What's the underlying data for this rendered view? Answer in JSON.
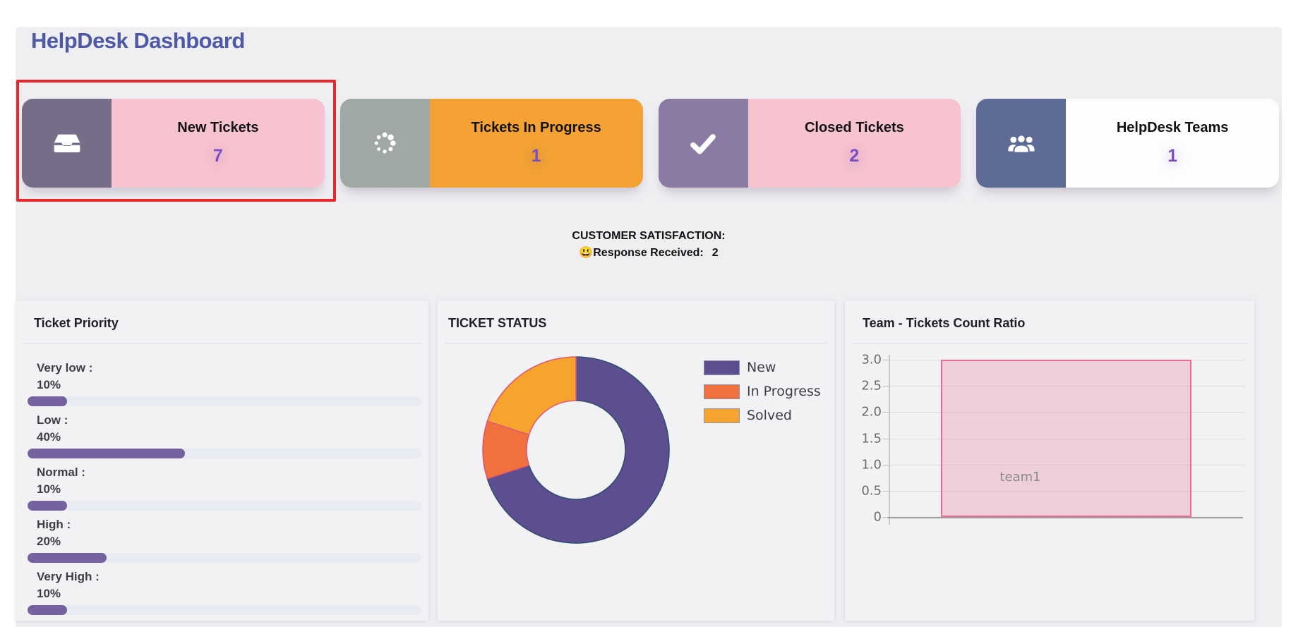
{
  "app": {
    "title": "HelpDesk Dashboard"
  },
  "kpi_cards": [
    {
      "label": "New Tickets",
      "value": "7",
      "icon": "inbox-icon",
      "icon_bg": "#766e88",
      "body_bg": "#f7c3d0",
      "highlighted": true
    },
    {
      "label": "Tickets In Progress",
      "value": "1",
      "icon": "spinner-icon",
      "icon_bg": "#9fa8a3",
      "body_bg": "#f4a233",
      "highlighted": false
    },
    {
      "label": "Closed Tickets",
      "value": "2",
      "icon": "check-icon",
      "icon_bg": "#8a7aa4",
      "body_bg": "#f7c3d0",
      "highlighted": false
    },
    {
      "label": "HelpDesk Teams",
      "value": "1",
      "icon": "users-icon",
      "icon_bg": "#5e6b97",
      "body_bg": "#fdfdfe",
      "highlighted": false
    }
  ],
  "satisfaction": {
    "heading": "CUSTOMER SATISFACTION:",
    "emoji": "😃",
    "label": "Response Received:",
    "value": "2"
  },
  "priority_panel": {
    "title": "Ticket Priority",
    "items": [
      {
        "label": "Very low :",
        "value": "10%",
        "percent": 10
      },
      {
        "label": "Low :",
        "value": "40%",
        "percent": 40
      },
      {
        "label": "Normal :",
        "value": "10%",
        "percent": 10
      },
      {
        "label": "High :",
        "value": "20%",
        "percent": 20
      },
      {
        "label": "Very High :",
        "value": "10%",
        "percent": 10
      }
    ]
  },
  "status_panel": {
    "title": "TICKET STATUS",
    "segments": [
      {
        "label": "New",
        "value": 7,
        "color": "#5d4e90",
        "border": "#2f4d71"
      },
      {
        "label": "In Progress",
        "value": 1,
        "color": "#f0713d",
        "border": "#dd5570"
      },
      {
        "label": "Solved",
        "value": 2,
        "color": "#f6a42d",
        "border": "#e25772"
      }
    ],
    "legend_border": "#8a93a6"
  },
  "team_panel": {
    "title": "Team - Tickets Count Ratio",
    "categories": [
      "team1"
    ],
    "values": [
      3
    ],
    "y_ticks": [
      "3.0",
      "2.5",
      "2.0",
      "1.5",
      "1.0",
      "0.5",
      "0"
    ],
    "y_max": 3
  },
  "chart_data": [
    {
      "type": "pie",
      "title": "TICKET STATUS",
      "labels": [
        "New",
        "In Progress",
        "Solved"
      ],
      "values": [
        7,
        1,
        2
      ],
      "colors": [
        "#5d4e90",
        "#f0713d",
        "#f6a42d"
      ],
      "donut": true,
      "legend_position": "right"
    },
    {
      "type": "bar",
      "title": "Team - Tickets Count Ratio",
      "categories": [
        "team1"
      ],
      "values": [
        3
      ],
      "xlabel": "",
      "ylabel": "",
      "ylim": [
        0,
        3.0
      ],
      "yticks": [
        0,
        0.5,
        1.0,
        1.5,
        2.0,
        2.5,
        3.0
      ],
      "grid": true,
      "bar_color": "#f3d3de"
    },
    {
      "type": "bar",
      "title": "Ticket Priority",
      "categories": [
        "Very low",
        "Low",
        "Normal",
        "High",
        "Very High"
      ],
      "values": [
        10,
        40,
        10,
        20,
        10
      ],
      "unit": "%",
      "bar_color": "#75619e"
    }
  ]
}
